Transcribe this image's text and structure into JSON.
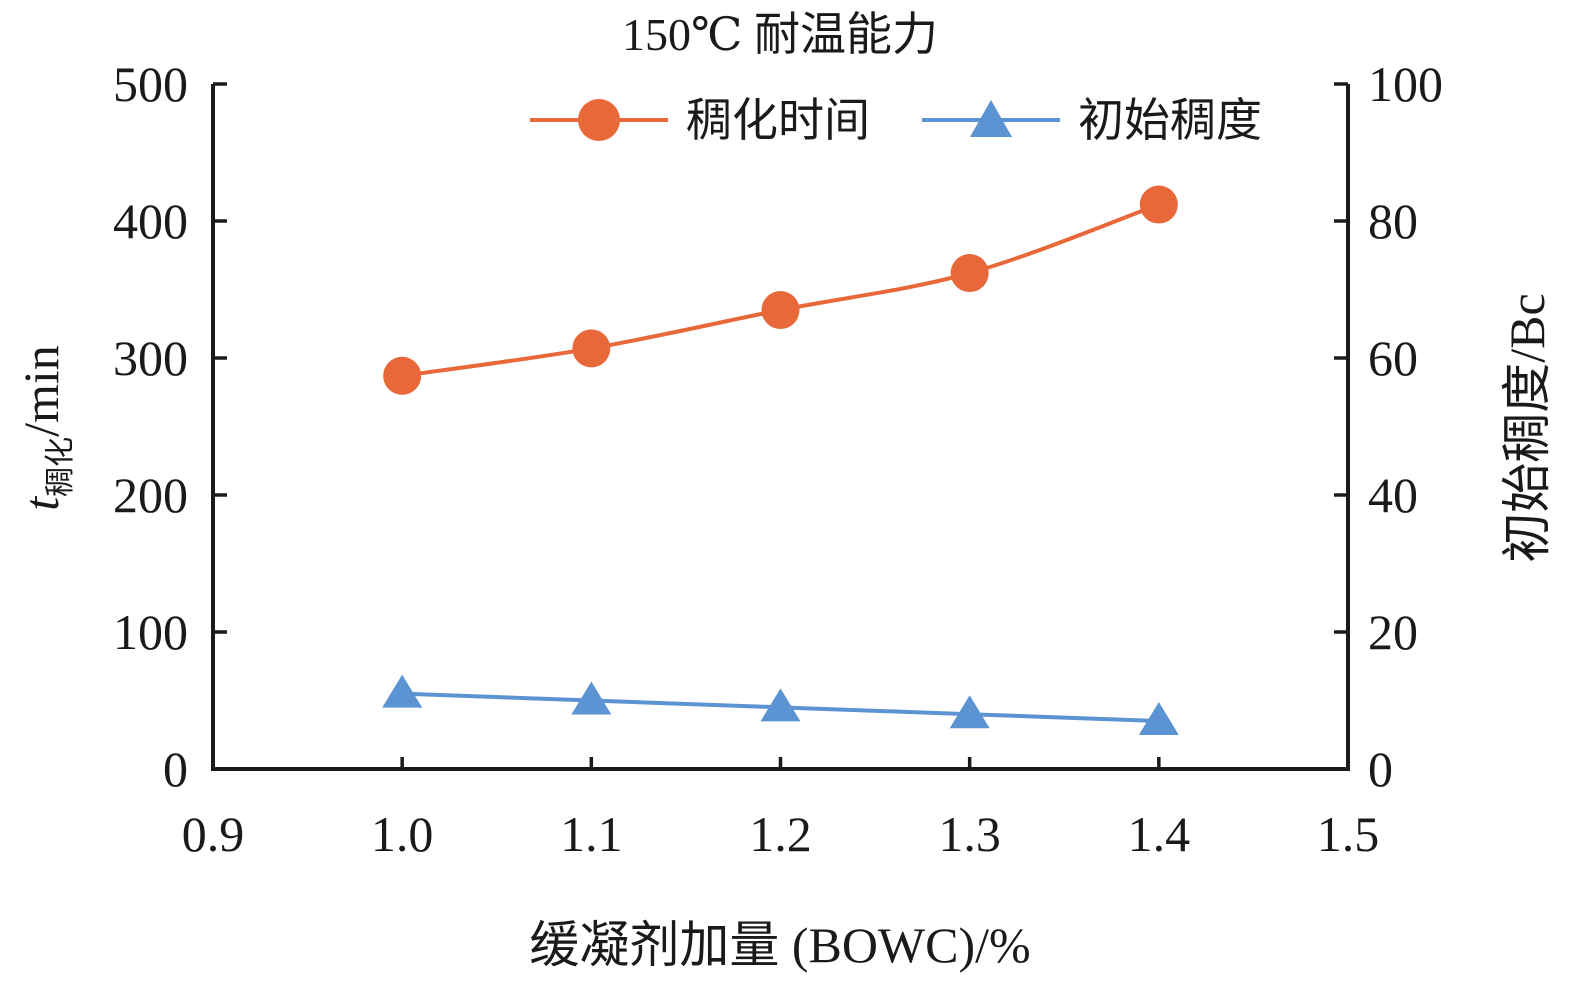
{
  "chart_data": {
    "type": "line",
    "title": "150℃ 耐温能力",
    "xlabel": "缓凝剂加量 (BOWC)/%",
    "ylabel": {
      "main": "t",
      "sub": "稠化",
      "unit": "/min"
    },
    "y2label": "初始稠度/Bc",
    "xlim": [
      0.9,
      1.5
    ],
    "ylim": [
      0,
      500
    ],
    "y2lim": [
      0,
      100
    ],
    "x_ticks": [
      "0.9",
      "1.0",
      "1.1",
      "1.2",
      "1.3",
      "1.4",
      "1.5"
    ],
    "y_ticks": [
      "0",
      "100",
      "200",
      "300",
      "400",
      "500"
    ],
    "y2_ticks": [
      "0",
      "20",
      "40",
      "60",
      "80",
      "100"
    ],
    "legend_position": "top-right",
    "grid": false,
    "series": [
      {
        "name": "稠化时间",
        "axis": "left",
        "marker": "circle",
        "color": "#E8683A",
        "x": [
          1.0,
          1.1,
          1.2,
          1.3,
          1.4
        ],
        "values": [
          287,
          307,
          335,
          362,
          412
        ]
      },
      {
        "name": "初始稠度",
        "axis": "right",
        "marker": "triangle",
        "color": "#5B93D3",
        "x": [
          1.0,
          1.1,
          1.2,
          1.3,
          1.4
        ],
        "values": [
          11,
          10,
          9,
          8,
          7
        ]
      }
    ]
  }
}
